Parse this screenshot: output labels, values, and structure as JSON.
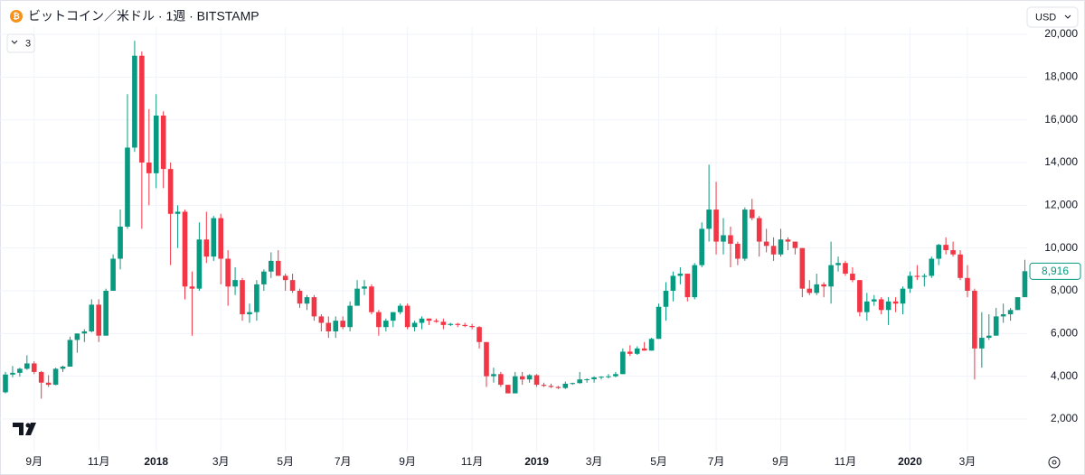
{
  "header": {
    "title": "ビットコイン／米ドル · 1週 · BITSTAMP",
    "currency": "USD",
    "indicator_count": "3"
  },
  "chart_data": {
    "type": "candlestick",
    "categories": [
      null,
      null,
      null,
      null,
      "9月",
      null,
      null,
      null,
      null,
      null,
      null,
      null,
      null,
      "11月",
      null,
      null,
      null,
      null,
      null,
      null,
      null,
      "2018",
      null,
      null,
      null,
      null,
      null,
      null,
      null,
      null,
      "3月",
      null,
      null,
      null,
      null,
      null,
      null,
      null,
      null,
      "5月",
      null,
      null,
      null,
      null,
      null,
      null,
      null,
      "7月",
      null,
      null,
      null,
      null,
      null,
      null,
      null,
      null,
      "9月",
      null,
      null,
      null,
      null,
      null,
      null,
      null,
      null,
      "11月",
      null,
      null,
      null,
      null,
      null,
      null,
      null,
      null,
      "2019",
      null,
      null,
      null,
      null,
      null,
      null,
      null,
      "3月",
      null,
      null,
      null,
      null,
      null,
      null,
      null,
      null,
      "5月",
      null,
      null,
      null,
      null,
      null,
      null,
      null,
      "7月",
      null,
      null,
      null,
      null,
      null,
      null,
      null,
      null,
      "9月",
      null,
      null,
      null,
      null,
      null,
      null,
      null,
      null,
      "11月",
      null,
      null,
      null,
      null,
      null,
      null,
      null,
      null,
      "2020",
      null,
      null,
      null,
      null,
      null,
      null,
      null,
      "3月",
      null,
      null,
      null,
      null,
      null,
      null,
      null,
      null
    ],
    "open": [
      3250,
      4080,
      4160,
      4350,
      4600,
      4200,
      3700,
      3600,
      4350,
      4450,
      5700,
      6000,
      6100,
      7350,
      5900,
      8000,
      9500,
      11000,
      14700,
      19000,
      14000,
      13500,
      16200,
      13700,
      11600,
      11700,
      8200,
      8100,
      10400,
      9600,
      11400,
      9500,
      8200,
      8500,
      6900,
      7000,
      8300,
      8900,
      9400,
      8700,
      8500,
      8000,
      7400,
      7700,
      6800,
      6500,
      6100,
      6600,
      6300,
      7300,
      8100,
      8200,
      7000,
      6300,
      6600,
      7000,
      7300,
      6300,
      6500,
      6700,
      6600,
      6550,
      6400,
      6450,
      6400,
      6350,
      6300,
      5600,
      4000,
      4100,
      3600,
      3200,
      4000,
      3850,
      4050,
      3600,
      3550,
      3500,
      3450,
      3650,
      3680,
      3850,
      3860,
      3950,
      3980,
      4000,
      4100,
      5150,
      5050,
      5300,
      5200,
      5750,
      7250,
      8000,
      8700,
      8800,
      7700,
      9200,
      10900,
      11800,
      10300,
      10600,
      10200,
      9500,
      11800,
      11400,
      10300,
      10100,
      9700,
      10400,
      10300,
      10000,
      8100,
      7900,
      8300,
      8200,
      9200,
      9300,
      8800,
      8500,
      7000,
      7500,
      7600,
      7100,
      7500,
      7400,
      8100,
      8700,
      8650,
      8700,
      9500,
      10150,
      9900,
      9700,
      8600,
      8000,
      5300,
      5800,
      5900,
      6800,
      6900,
      7100,
      7700
    ],
    "high": [
      4200,
      4480,
      4400,
      4980,
      4700,
      4250,
      4050,
      4400,
      4500,
      5850,
      6000,
      6200,
      7600,
      7600,
      8100,
      9700,
      11800,
      17200,
      19700,
      19200,
      16500,
      17200,
      16400,
      14000,
      12000,
      11800,
      8900,
      11200,
      11700,
      11500,
      11600,
      9900,
      9100,
      8600,
      7400,
      8500,
      9000,
      9800,
      9900,
      8800,
      8800,
      8100,
      7800,
      7800,
      6900,
      6800,
      6800,
      6800,
      7500,
      8500,
      8500,
      8300,
      7100,
      6700,
      7000,
      7400,
      7400,
      6600,
      6800,
      6700,
      6700,
      6700,
      6500,
      6500,
      6500,
      6450,
      6350,
      5600,
      4400,
      4200,
      3600,
      4200,
      4200,
      4100,
      4100,
      3700,
      3650,
      3550,
      3750,
      3700,
      4200,
      3900,
      4000,
      4000,
      4100,
      4200,
      5300,
      5450,
      5400,
      5600,
      5800,
      7400,
      8400,
      8900,
      9100,
      8800,
      9300,
      11200,
      13900,
      13100,
      11400,
      11000,
      10300,
      11900,
      12300,
      11500,
      10900,
      10500,
      10900,
      10500,
      10300,
      10000,
      8500,
      8800,
      8400,
      10300,
      9600,
      9400,
      9100,
      8500,
      7900,
      7800,
      7700,
      7700,
      7700,
      8200,
      8900,
      9200,
      8800,
      9600,
      10200,
      10500,
      10300,
      9900,
      9200,
      8100,
      7000,
      6900,
      7200,
      7400,
      7200,
      7700,
      9450
    ],
    "low": [
      3200,
      3950,
      3980,
      4300,
      4100,
      2950,
      3500,
      3580,
      4200,
      4450,
      5100,
      5600,
      6050,
      5600,
      5900,
      8000,
      9000,
      10900,
      14500,
      10900,
      12000,
      12800,
      12800,
      9200,
      10000,
      7600,
      5900,
      8000,
      9300,
      9400,
      8300,
      7300,
      7800,
      6600,
      6500,
      6600,
      8000,
      8600,
      8700,
      8000,
      7900,
      7200,
      7100,
      6600,
      6100,
      5800,
      5800,
      6200,
      6100,
      7300,
      7800,
      6900,
      5900,
      6100,
      6300,
      6900,
      6200,
      6100,
      6200,
      6400,
      6500,
      6200,
      6350,
      6300,
      6300,
      6200,
      5300,
      3500,
      3700,
      3500,
      3200,
      3200,
      3600,
      3700,
      3500,
      3500,
      3450,
      3400,
      3400,
      3600,
      3650,
      3700,
      3700,
      3850,
      3900,
      3950,
      4100,
      4950,
      5000,
      5200,
      5200,
      5750,
      6600,
      7500,
      8300,
      7500,
      7600,
      9100,
      10300,
      9700,
      9700,
      9100,
      9200,
      9400,
      11300,
      9600,
      9800,
      9400,
      9600,
      9900,
      9700,
      7700,
      7800,
      7800,
      7700,
      7400,
      8900,
      8700,
      8400,
      6800,
      6600,
      7300,
      6900,
      6400,
      7000,
      6900,
      7900,
      8500,
      8200,
      8600,
      9200,
      9700,
      9600,
      8500,
      7700,
      3850,
      4400,
      5700,
      5900,
      6500,
      6600,
      7100,
      7700
    ],
    "close": [
      4080,
      4160,
      4350,
      4600,
      4200,
      3700,
      3600,
      4350,
      4450,
      5700,
      6000,
      6100,
      7350,
      5900,
      8000,
      9500,
      11000,
      14700,
      19000,
      14000,
      13500,
      16200,
      13700,
      11600,
      11700,
      8200,
      8100,
      10400,
      9600,
      11400,
      9500,
      8200,
      8500,
      6900,
      7000,
      8300,
      8900,
      9400,
      8700,
      8500,
      8000,
      7400,
      7700,
      6800,
      6500,
      6100,
      6600,
      6300,
      7300,
      8100,
      8200,
      7000,
      6300,
      6600,
      7000,
      7300,
      6300,
      6500,
      6700,
      6600,
      6550,
      6400,
      6450,
      6400,
      6350,
      6300,
      5600,
      4000,
      4100,
      3600,
      3200,
      4000,
      3850,
      4050,
      3600,
      3550,
      3500,
      3450,
      3650,
      3680,
      3850,
      3860,
      3950,
      3980,
      4000,
      4100,
      5150,
      5050,
      5300,
      5200,
      5750,
      7250,
      8000,
      8700,
      8800,
      7700,
      9200,
      10900,
      11800,
      10300,
      10600,
      10200,
      9500,
      11800,
      11400,
      10300,
      10100,
      9700,
      10400,
      10300,
      10000,
      8100,
      7900,
      8300,
      8200,
      9200,
      9300,
      8800,
      8500,
      7000,
      7500,
      7600,
      7100,
      7500,
      7400,
      8100,
      8700,
      8650,
      8700,
      9500,
      10150,
      9900,
      9700,
      8600,
      8000,
      5300,
      5800,
      5900,
      6800,
      6900,
      7100,
      7700,
      8916
    ],
    "last_price_label": "8,916",
    "up_color": "#089981",
    "down_color": "#f23645",
    "ylim": [
      900,
      20340
    ],
    "yticks": [
      {
        "value": 2000,
        "label": "2,000"
      },
      {
        "value": 4000,
        "label": "4,000"
      },
      {
        "value": 6000,
        "label": "6,000"
      },
      {
        "value": 8000,
        "label": "8,000"
      },
      {
        "value": 10000,
        "label": "10,000"
      },
      {
        "value": 12000,
        "label": "12,000"
      },
      {
        "value": 14000,
        "label": "14,000"
      },
      {
        "value": 16000,
        "label": "16,000"
      },
      {
        "value": 18000,
        "label": "18,000"
      },
      {
        "value": 20000,
        "label": "20,000"
      }
    ],
    "grid": true
  }
}
